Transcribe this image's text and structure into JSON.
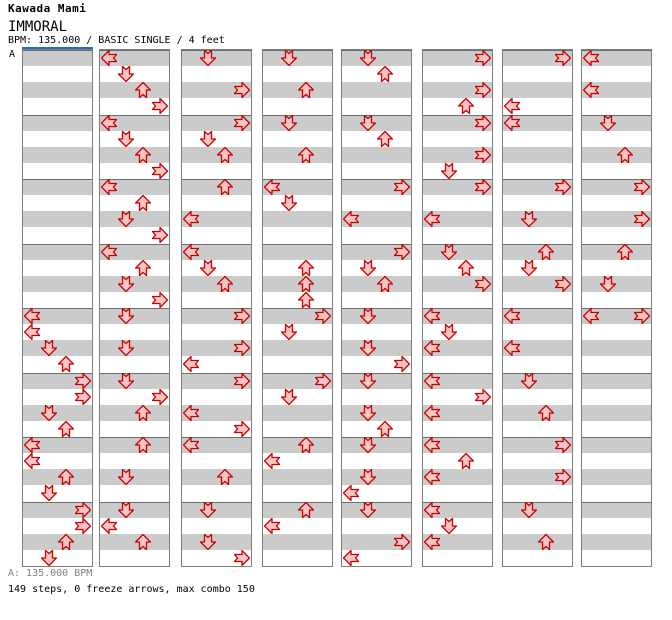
{
  "header": {
    "artist": "Kawada Mami",
    "title": "IMMORAL",
    "info_line": "BPM: 135.000 / BASIC SINGLE / 4 feet"
  },
  "section_marker": "A",
  "footer": {
    "bpm_line": "A: 135.000 BPM",
    "stats_line": "149 steps, 0 freeze arrows, max combo 150"
  },
  "colors": {
    "arrow_fill": "#f8c6c6",
    "arrow_stroke": "#c90000",
    "band_gray": "#cbcbcb",
    "band_white": "#ffffff",
    "column_border": "#7d7d7d",
    "measure_line": "#6e6e6e",
    "section_line_blue": "#1a6fc4",
    "footer_gray": "#808080"
  },
  "chart_data": {
    "type": "step_chart",
    "title": "IMMORAL",
    "artist": "Kawada Mami",
    "bpm": 135.0,
    "difficulty": "BASIC SINGLE",
    "feet": 4,
    "steps": 149,
    "freeze_arrows": 0,
    "max_combo": 150,
    "bpm_sections": [
      {
        "label": "A",
        "bpm": 135.0,
        "column": 0,
        "beat": 0
      }
    ],
    "lanes": [
      "L",
      "D",
      "U",
      "R"
    ],
    "beats_per_column": 32,
    "beats_per_measure": 4,
    "columns": [
      {
        "arrows": [
          [
            16,
            "L"
          ],
          [
            17,
            "L"
          ],
          [
            18,
            "D"
          ],
          [
            19,
            "U"
          ],
          [
            20,
            "R"
          ],
          [
            21,
            "R"
          ],
          [
            22,
            "D"
          ],
          [
            23,
            "U"
          ],
          [
            24,
            "L"
          ],
          [
            25,
            "L"
          ],
          [
            26,
            "U"
          ],
          [
            27,
            "D"
          ],
          [
            28,
            "R"
          ],
          [
            29,
            "R"
          ],
          [
            30,
            "U"
          ],
          [
            31,
            "D"
          ]
        ]
      },
      {
        "arrows": [
          [
            0,
            "L"
          ],
          [
            1,
            "D"
          ],
          [
            2,
            "U"
          ],
          [
            3,
            "R"
          ],
          [
            4,
            "L"
          ],
          [
            5,
            "D"
          ],
          [
            6,
            "U"
          ],
          [
            7,
            "R"
          ],
          [
            8,
            "L"
          ],
          [
            9,
            "U"
          ],
          [
            10,
            "D"
          ],
          [
            11,
            "R"
          ],
          [
            12,
            "L"
          ],
          [
            13,
            "U"
          ],
          [
            14,
            "D"
          ],
          [
            15,
            "R"
          ],
          [
            16,
            "D"
          ],
          [
            18,
            "D"
          ],
          [
            20,
            "D"
          ],
          [
            21,
            "R"
          ],
          [
            22,
            "U"
          ],
          [
            24,
            "U"
          ],
          [
            26,
            "D"
          ],
          [
            28,
            "D"
          ],
          [
            29,
            "L"
          ],
          [
            30,
            "U"
          ]
        ]
      },
      {
        "arrows": [
          [
            0,
            "D"
          ],
          [
            2,
            "R"
          ],
          [
            4,
            "R"
          ],
          [
            5,
            "D"
          ],
          [
            6,
            "U"
          ],
          [
            8,
            "U"
          ],
          [
            10,
            "L"
          ],
          [
            12,
            "L"
          ],
          [
            13,
            "D"
          ],
          [
            14,
            "U"
          ],
          [
            16,
            "R"
          ],
          [
            18,
            "R"
          ],
          [
            19,
            "L"
          ],
          [
            20,
            "R"
          ],
          [
            22,
            "L"
          ],
          [
            23,
            "R"
          ],
          [
            24,
            "L"
          ],
          [
            26,
            "U"
          ],
          [
            28,
            "D"
          ],
          [
            30,
            "D"
          ],
          [
            31,
            "R"
          ]
        ]
      },
      {
        "arrows": [
          [
            0,
            "D"
          ],
          [
            2,
            "U"
          ],
          [
            4,
            "D"
          ],
          [
            6,
            "U"
          ],
          [
            8,
            "L"
          ],
          [
            9,
            "D"
          ],
          [
            13,
            "U"
          ],
          [
            14,
            "U"
          ],
          [
            15,
            "U"
          ],
          [
            16,
            "R"
          ],
          [
            17,
            "D"
          ],
          [
            20,
            "R"
          ],
          [
            21,
            "D"
          ],
          [
            24,
            "U"
          ],
          [
            25,
            "L"
          ],
          [
            28,
            "U"
          ],
          [
            29,
            "L"
          ]
        ]
      },
      {
        "arrows": [
          [
            0,
            "D"
          ],
          [
            1,
            "U"
          ],
          [
            4,
            "D"
          ],
          [
            5,
            "U"
          ],
          [
            8,
            "R"
          ],
          [
            10,
            "L"
          ],
          [
            12,
            "R"
          ],
          [
            13,
            "D"
          ],
          [
            14,
            "U"
          ],
          [
            16,
            "D"
          ],
          [
            18,
            "D"
          ],
          [
            19,
            "R"
          ],
          [
            20,
            "D"
          ],
          [
            22,
            "D"
          ],
          [
            23,
            "U"
          ],
          [
            24,
            "D"
          ],
          [
            26,
            "D"
          ],
          [
            27,
            "L"
          ],
          [
            28,
            "D"
          ],
          [
            30,
            "R"
          ],
          [
            31,
            "L"
          ]
        ]
      },
      {
        "arrows": [
          [
            0,
            "R"
          ],
          [
            2,
            "R"
          ],
          [
            3,
            "U"
          ],
          [
            4,
            "R"
          ],
          [
            6,
            "R"
          ],
          [
            7,
            "D"
          ],
          [
            8,
            "R"
          ],
          [
            10,
            "L"
          ],
          [
            12,
            "D"
          ],
          [
            13,
            "U"
          ],
          [
            14,
            "R"
          ],
          [
            16,
            "L"
          ],
          [
            17,
            "D"
          ],
          [
            18,
            "L"
          ],
          [
            20,
            "L"
          ],
          [
            21,
            "R"
          ],
          [
            22,
            "L"
          ],
          [
            24,
            "L"
          ],
          [
            25,
            "U"
          ],
          [
            26,
            "L"
          ],
          [
            28,
            "L"
          ],
          [
            29,
            "D"
          ],
          [
            30,
            "L"
          ]
        ]
      },
      {
        "arrows": [
          [
            0,
            "R"
          ],
          [
            3,
            "L"
          ],
          [
            4,
            "L"
          ],
          [
            8,
            "R"
          ],
          [
            10,
            "D"
          ],
          [
            12,
            "U"
          ],
          [
            13,
            "D"
          ],
          [
            14,
            "R"
          ],
          [
            16,
            "L"
          ],
          [
            18,
            "L"
          ],
          [
            20,
            "D"
          ],
          [
            22,
            "U"
          ],
          [
            24,
            "R"
          ],
          [
            26,
            "R"
          ],
          [
            28,
            "D"
          ],
          [
            30,
            "U"
          ]
        ]
      },
      {
        "arrows": [
          [
            0,
            "L"
          ],
          [
            2,
            "L"
          ],
          [
            4,
            "D"
          ],
          [
            6,
            "U"
          ],
          [
            8,
            "R"
          ],
          [
            10,
            "R"
          ],
          [
            12,
            "U"
          ],
          [
            14,
            "D"
          ],
          [
            16,
            "L"
          ],
          [
            16,
            "R"
          ]
        ]
      }
    ]
  }
}
